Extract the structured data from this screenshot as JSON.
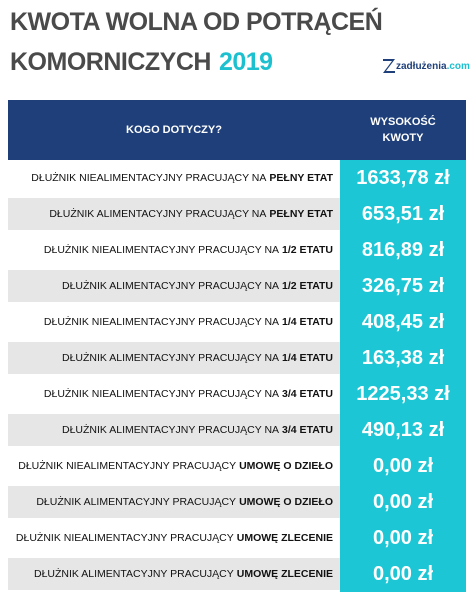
{
  "header": {
    "title_line1": "KWOTA WOLNA OD POTRĄCEŃ",
    "title_line2": "KOMORNICZYCH",
    "year": "2019",
    "logo": {
      "name": "zadłużenia",
      "suffix": ".com"
    }
  },
  "table": {
    "columns": [
      "KOGO DOTYCZY?",
      "WYSOKOŚĆ KWOTY"
    ],
    "rows": [
      {
        "text": "DŁUŻNIK NIEALIMENTACYJNY PRACUJĄCY NA",
        "bold": "PEŁNY ETAT",
        "amount": "1633,78 zł"
      },
      {
        "text": "DŁUŻNIK ALIMENTACYJNY PRACUJĄCY NA",
        "bold": "PEŁNY ETAT",
        "amount": "653,51 zł"
      },
      {
        "text": "DŁUŻNIK NIEALIMENTACYJNY PRACUJĄCY NA",
        "bold": "1/2 ETATU",
        "amount": "816,89 zł"
      },
      {
        "text": "DŁUŻNIK ALIMENTACYJNY PRACUJĄCY NA",
        "bold": "1/2 ETATU",
        "amount": "326,75 zł"
      },
      {
        "text": "DŁUŻNIK NIEALIMENTACYJNY PRACUJĄCY NA",
        "bold": "1/4 ETATU",
        "amount": "408,45 zł"
      },
      {
        "text": "DŁUŻNIK ALIMENTACYJNY PRACUJĄCY NA",
        "bold": "1/4 ETATU",
        "amount": "163,38 zł"
      },
      {
        "text": "DŁUŻNIK NIEALIMENTACYJNY PRACUJĄCY NA",
        "bold": "3/4 ETATU",
        "amount": "1225,33 zł"
      },
      {
        "text": "DŁUŻNIK ALIMENTACYJNY PRACUJĄCY NA",
        "bold": "3/4 ETATU",
        "amount": "490,13 zł"
      },
      {
        "text": "DŁUŻNIK NIEALIMENTACYJNY PRACUJĄCY",
        "bold": "UMOWĘ O DZIEŁO",
        "amount": "0,00 zł"
      },
      {
        "text": "DŁUŻNIK ALIMENTACYJNY PRACUJĄCY",
        "bold": "UMOWĘ O DZIEŁO",
        "amount": "0,00 zł"
      },
      {
        "text": "DŁUŻNIK NIEALIMENTACYJNY PRACUJĄCY",
        "bold": "UMOWĘ ZLECENIE",
        "amount": "0,00 zł"
      },
      {
        "text": "DŁUŻNIK ALIMENTACYJNY PRACUJĄCY",
        "bold": "UMOWĘ ZLECENIE",
        "amount": "0,00 zł"
      }
    ]
  }
}
